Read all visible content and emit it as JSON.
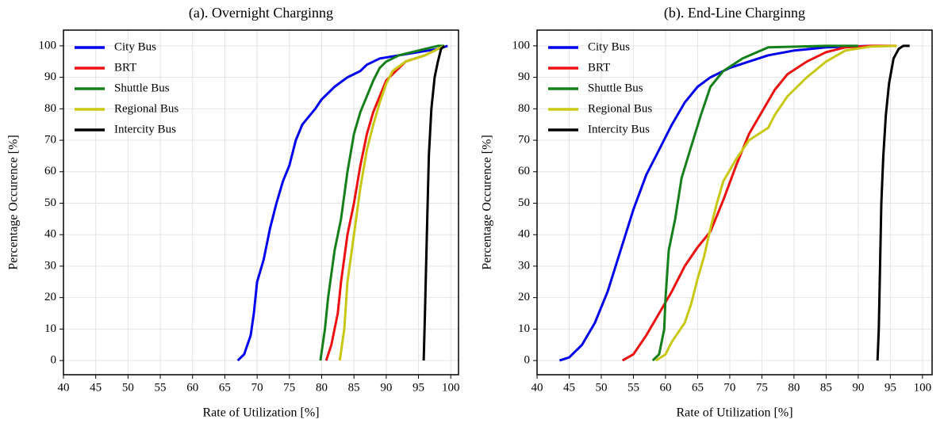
{
  "chart_data": [
    {
      "type": "line",
      "title": "(a). Overnight Charginng",
      "x_label": "Rate of Utilization [%]",
      "y_label": "Percentage Occurence [%]",
      "xlim": [
        40,
        101.2
      ],
      "ylim": [
        -4.5,
        105
      ],
      "xticks": [
        40,
        45,
        50,
        55,
        60,
        65,
        70,
        75,
        80,
        85,
        90,
        95,
        100
      ],
      "yticks": [
        0,
        10,
        20,
        30,
        40,
        50,
        60,
        70,
        80,
        90,
        100
      ],
      "grid": true,
      "legend": "upper left",
      "series": [
        {
          "name": "City Bus",
          "color": "#0000ee",
          "x": [
            67,
            68,
            69,
            69.5,
            70,
            71,
            72,
            73,
            74,
            75,
            76,
            77,
            79,
            80,
            82,
            84,
            86,
            87,
            89,
            92,
            95,
            98,
            99.5
          ],
          "values": [
            0,
            2,
            8,
            15,
            25,
            32,
            42,
            50,
            57,
            62,
            70,
            75,
            80,
            83,
            87,
            90,
            92,
            94,
            96,
            97,
            98,
            99,
            100
          ]
        },
        {
          "name": "BRT",
          "color": "#ee1111",
          "x": [
            80.7,
            81.5,
            82.5,
            83,
            84,
            85,
            86,
            87,
            88,
            89,
            90,
            91,
            93,
            96,
            98,
            99
          ],
          "values": [
            0,
            5,
            15,
            25,
            40,
            50,
            62,
            72,
            79,
            84,
            89,
            91,
            95,
            97,
            99,
            100
          ]
        },
        {
          "name": "Shuttle Bus",
          "color": "#15801a",
          "x": [
            79.8,
            80.5,
            81,
            82,
            83,
            84,
            85,
            86,
            87,
            88,
            89,
            90,
            92,
            96,
            98,
            99
          ],
          "values": [
            0,
            10,
            20,
            35,
            45,
            60,
            72,
            79,
            84,
            89,
            93,
            95,
            97,
            99,
            100,
            100
          ]
        },
        {
          "name": "Regional Bus",
          "color": "#c8c814",
          "x": [
            82.8,
            83.5,
            84,
            85,
            86,
            87,
            88,
            89,
            90,
            91,
            93,
            96,
            98,
            99
          ],
          "values": [
            0,
            10,
            25,
            40,
            55,
            67,
            75,
            82,
            88,
            92,
            95,
            97,
            99,
            100
          ]
        },
        {
          "name": "Intercity Bus",
          "color": "#000000",
          "x": [
            95.8,
            96,
            96.3,
            96.6,
            97,
            97.5,
            98,
            98.5,
            99
          ],
          "values": [
            0,
            15,
            40,
            65,
            80,
            90,
            95,
            99,
            100
          ]
        }
      ]
    },
    {
      "type": "line",
      "title": "(b). End-Line Charginng",
      "x_label": "Rate of Utilization [%]",
      "y_label": "Percentage Occurence [%]",
      "xlim": [
        40,
        101.5
      ],
      "ylim": [
        -4.5,
        105
      ],
      "xticks": [
        40,
        45,
        50,
        55,
        60,
        65,
        70,
        75,
        80,
        85,
        90,
        95,
        100
      ],
      "yticks": [
        0,
        10,
        20,
        30,
        40,
        50,
        60,
        70,
        80,
        90,
        100
      ],
      "grid": true,
      "legend": "upper left",
      "series": [
        {
          "name": "City Bus",
          "color": "#0000ee",
          "x": [
            43.5,
            45,
            47,
            49,
            51,
            53,
            55,
            57,
            59,
            61,
            63,
            65,
            67,
            70,
            73,
            76,
            80,
            85,
            92
          ],
          "values": [
            0,
            1,
            5,
            12,
            22,
            35,
            48,
            59,
            67,
            75,
            82,
            87,
            90,
            93,
            95,
            97,
            98.5,
            99.5,
            100
          ]
        },
        {
          "name": "BRT",
          "color": "#ee1111",
          "x": [
            53.3,
            55,
            57,
            59,
            61,
            63,
            65,
            67,
            69,
            71,
            73,
            75,
            77,
            79,
            82,
            85,
            88,
            92,
            96
          ],
          "values": [
            0,
            2,
            8,
            15,
            22,
            30,
            36,
            41,
            51,
            62,
            72,
            79,
            86,
            91,
            95,
            98,
            99.5,
            100,
            100
          ]
        },
        {
          "name": "Shuttle Bus",
          "color": "#15801a",
          "x": [
            58,
            59,
            59.8,
            60,
            60.5,
            61.5,
            62.5,
            64,
            65.5,
            67,
            69,
            72,
            76,
            85,
            90
          ],
          "values": [
            0,
            2,
            10,
            20,
            35,
            45,
            58,
            68,
            78,
            87,
            92,
            96,
            99.5,
            100,
            100
          ]
        },
        {
          "name": "Regional Bus",
          "color": "#c8c814",
          "x": [
            58.5,
            60,
            61,
            63,
            64,
            65,
            66,
            67,
            68,
            69,
            71,
            73,
            76,
            77,
            79,
            82,
            85,
            88,
            92,
            96
          ],
          "values": [
            0,
            2,
            6,
            12,
            18,
            26,
            33,
            42,
            50,
            57,
            64,
            70,
            74,
            78,
            84,
            90,
            95,
            98.5,
            99.8,
            100
          ]
        },
        {
          "name": "Intercity Bus",
          "color": "#000000",
          "x": [
            93,
            93.2,
            93.4,
            93.6,
            93.9,
            94.3,
            94.8,
            95.5,
            96.3,
            97,
            98
          ],
          "values": [
            0,
            10,
            30,
            50,
            65,
            78,
            88,
            96,
            99,
            100,
            100
          ]
        }
      ]
    }
  ]
}
